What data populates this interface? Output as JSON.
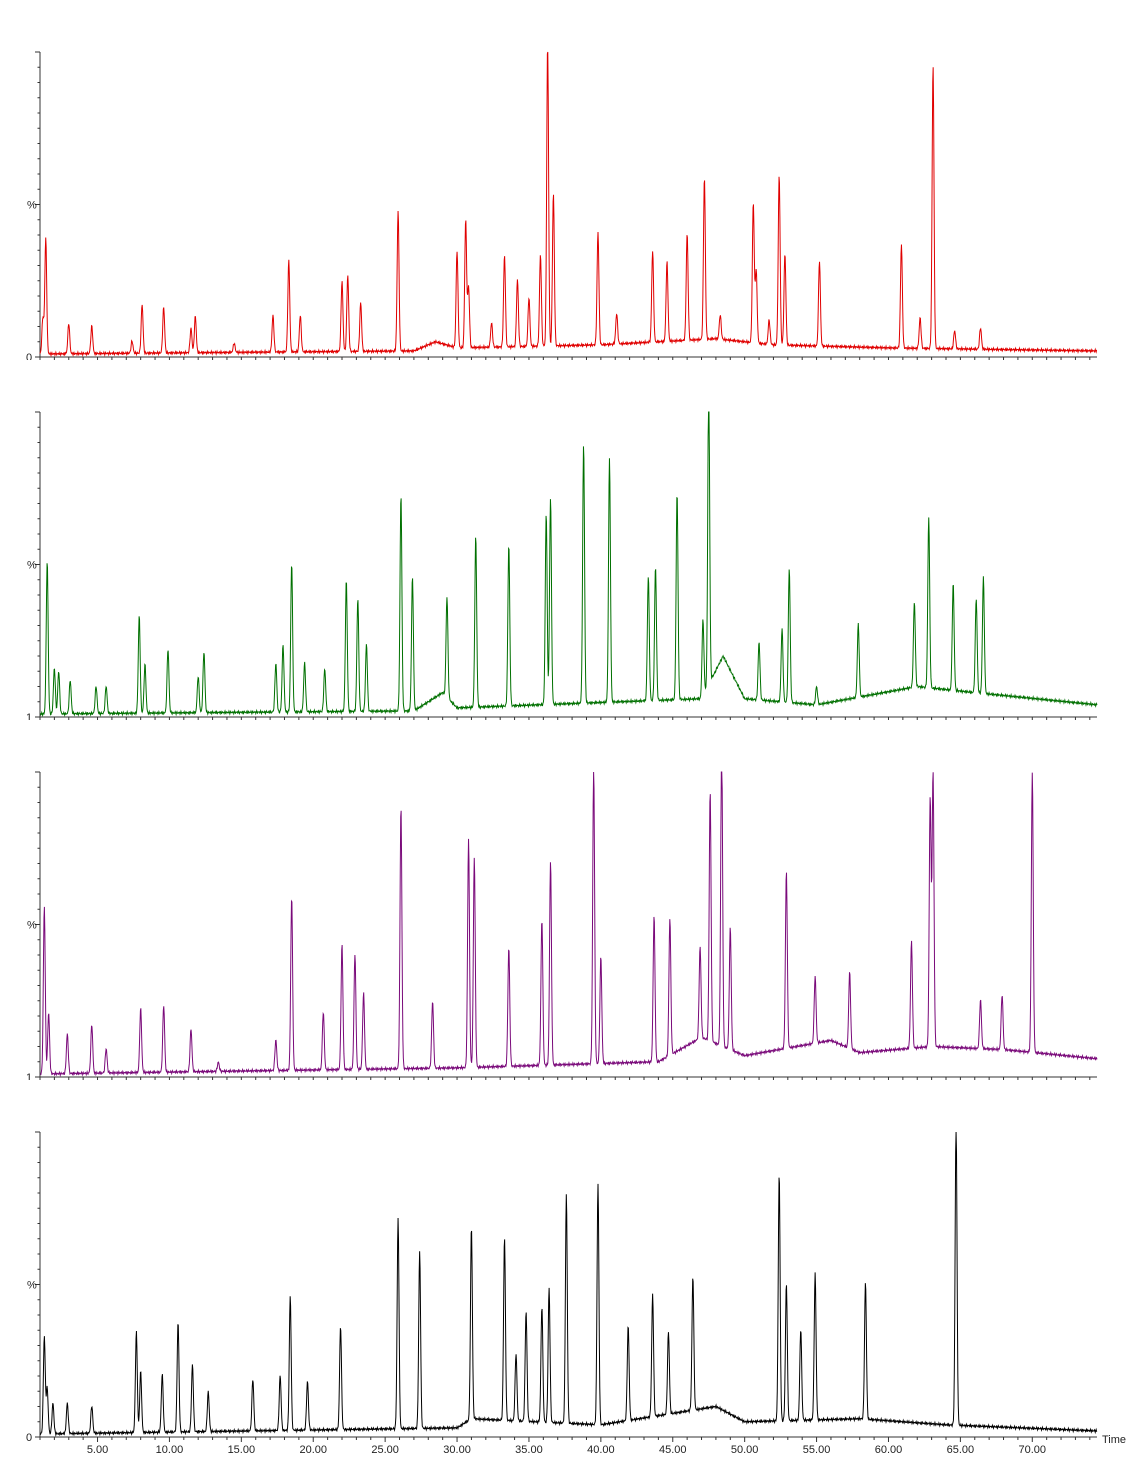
{
  "chart_data": [
    {
      "type": "line",
      "color": "#e00000",
      "x_ticks": [
        "5.00",
        "10.00",
        "15.00",
        "20.00",
        "25.00",
        "30.00",
        "35.00",
        "40.00",
        "45.00",
        "50.00",
        "55.00",
        "60.00",
        "65.00",
        "70.00"
      ],
      "y_top_label": "%",
      "y_bottom_label": "0",
      "xlim": [
        1,
        74.5
      ],
      "ylim": [
        0,
        100
      ],
      "baseline": [
        [
          1,
          1
        ],
        [
          27,
          2
        ],
        [
          28.5,
          5
        ],
        [
          30,
          3
        ],
        [
          40,
          4
        ],
        [
          48,
          6
        ],
        [
          52,
          4
        ],
        [
          60,
          3
        ],
        [
          74.5,
          2
        ]
      ],
      "peaks": [
        [
          1.4,
          38
        ],
        [
          1.2,
          12
        ],
        [
          3,
          10
        ],
        [
          4.6,
          9
        ],
        [
          7.4,
          4
        ],
        [
          8.1,
          16
        ],
        [
          9.6,
          15
        ],
        [
          11.5,
          8
        ],
        [
          11.8,
          12
        ],
        [
          14.5,
          3
        ],
        [
          17.2,
          12
        ],
        [
          18.3,
          30
        ],
        [
          19.1,
          12
        ],
        [
          22,
          23
        ],
        [
          22.4,
          25
        ],
        [
          23.3,
          16
        ],
        [
          25.9,
          46
        ],
        [
          30,
          32
        ],
        [
          30.6,
          42
        ],
        [
          30.8,
          20
        ],
        [
          32.4,
          8
        ],
        [
          33.3,
          30
        ],
        [
          34.2,
          22
        ],
        [
          35,
          16
        ],
        [
          35.8,
          30
        ],
        [
          36.3,
          100
        ],
        [
          36.7,
          50
        ],
        [
          39.8,
          37
        ],
        [
          41.1,
          10
        ],
        [
          43.6,
          30
        ],
        [
          44.6,
          26
        ],
        [
          46,
          35
        ],
        [
          47.2,
          53
        ],
        [
          48.3,
          8
        ],
        [
          50.6,
          46
        ],
        [
          50.8,
          24
        ],
        [
          51.7,
          8
        ],
        [
          52.4,
          56
        ],
        [
          52.8,
          30
        ],
        [
          55.2,
          28
        ],
        [
          60.9,
          34
        ],
        [
          62.2,
          10
        ],
        [
          63.1,
          93
        ],
        [
          64.6,
          6
        ],
        [
          66.4,
          7
        ]
      ]
    },
    {
      "type": "line",
      "color": "#007000",
      "x_ticks": [
        "5.00",
        "10.00",
        "15.00",
        "20.00",
        "25.00",
        "30.00",
        "35.00",
        "40.00",
        "45.00",
        "50.00",
        "55.00",
        "60.00",
        "65.00",
        "70.00"
      ],
      "y_top_label": "%",
      "y_bottom_label": "1",
      "xlim": [
        1,
        74.5
      ],
      "ylim": [
        0,
        100
      ],
      "baseline": [
        [
          1,
          1
        ],
        [
          27,
          2
        ],
        [
          29,
          8
        ],
        [
          30,
          3
        ],
        [
          47,
          6
        ],
        [
          48.5,
          20
        ],
        [
          50,
          6
        ],
        [
          55,
          4
        ],
        [
          62,
          10
        ],
        [
          66,
          8
        ],
        [
          74.5,
          4
        ]
      ],
      "peaks": [
        [
          1.5,
          50
        ],
        [
          2,
          15
        ],
        [
          2.3,
          14
        ],
        [
          3.1,
          11
        ],
        [
          4.9,
          9
        ],
        [
          5.6,
          9
        ],
        [
          7.9,
          32
        ],
        [
          8.3,
          16
        ],
        [
          9.9,
          21
        ],
        [
          12,
          12
        ],
        [
          12.4,
          20
        ],
        [
          17.4,
          16
        ],
        [
          17.9,
          22
        ],
        [
          18.5,
          49
        ],
        [
          19.4,
          16
        ],
        [
          20.8,
          14
        ],
        [
          22.3,
          43
        ],
        [
          23.1,
          37
        ],
        [
          23.7,
          22
        ],
        [
          26.1,
          71
        ],
        [
          26.9,
          44
        ],
        [
          29.3,
          33
        ],
        [
          31.3,
          56
        ],
        [
          33.6,
          53
        ],
        [
          36.2,
          63
        ],
        [
          36.5,
          68
        ],
        [
          38.8,
          85
        ],
        [
          40.6,
          80
        ],
        [
          43.3,
          41
        ],
        [
          43.8,
          44
        ],
        [
          45.3,
          68
        ],
        [
          47.5,
          100
        ],
        [
          47.1,
          25
        ],
        [
          51,
          19
        ],
        [
          52.6,
          24
        ],
        [
          53.1,
          44
        ],
        [
          55,
          6
        ],
        [
          57.9,
          24
        ],
        [
          61.8,
          28
        ],
        [
          62.8,
          56
        ],
        [
          64.5,
          35
        ],
        [
          66.1,
          31
        ],
        [
          66.6,
          38
        ]
      ]
    },
    {
      "type": "line",
      "color": "#7a0a7a",
      "x_ticks": [
        "5.00",
        "10.00",
        "15.00",
        "20.00",
        "25.00",
        "30.00",
        "35.00",
        "40.00",
        "45.00",
        "50.00",
        "55.00",
        "60.00",
        "65.00",
        "70.00"
      ],
      "y_top_label": "%",
      "y_bottom_label": "1",
      "xlim": [
        1,
        74.5
      ],
      "ylim": [
        0,
        100
      ],
      "baseline": [
        [
          1,
          1
        ],
        [
          30,
          3
        ],
        [
          44,
          5
        ],
        [
          47,
          13
        ],
        [
          50,
          7
        ],
        [
          56,
          12
        ],
        [
          58,
          8
        ],
        [
          63,
          10
        ],
        [
          68,
          9
        ],
        [
          74.5,
          6
        ]
      ],
      "peaks": [
        [
          1.3,
          55
        ],
        [
          1.6,
          20
        ],
        [
          2.9,
          13
        ],
        [
          4.6,
          16
        ],
        [
          5.6,
          8
        ],
        [
          8,
          21
        ],
        [
          9.6,
          22
        ],
        [
          11.5,
          14
        ],
        [
          13.4,
          3
        ],
        [
          17.4,
          10
        ],
        [
          18.5,
          57
        ],
        [
          20.7,
          19
        ],
        [
          22,
          41
        ],
        [
          22.9,
          38
        ],
        [
          23.5,
          25
        ],
        [
          26.1,
          86
        ],
        [
          28.3,
          22
        ],
        [
          30.8,
          75
        ],
        [
          31.2,
          69
        ],
        [
          33.6,
          39
        ],
        [
          35.9,
          48
        ],
        [
          36.5,
          67
        ],
        [
          39.5,
          98
        ],
        [
          40,
          35
        ],
        [
          43.7,
          48
        ],
        [
          44.8,
          45
        ],
        [
          46.9,
          30
        ],
        [
          47.6,
          82
        ],
        [
          48.4,
          100
        ],
        [
          49,
          40
        ],
        [
          52.9,
          58
        ],
        [
          54.9,
          22
        ],
        [
          57.3,
          25
        ],
        [
          61.6,
          35
        ],
        [
          62.9,
          82
        ],
        [
          63.1,
          90
        ],
        [
          66.4,
          16
        ],
        [
          67.9,
          18
        ],
        [
          70,
          92
        ]
      ]
    },
    {
      "type": "line",
      "color": "#000000",
      "x_ticks": [
        "5.00",
        "10.00",
        "15.00",
        "20.00",
        "25.00",
        "30.00",
        "35.00",
        "40.00",
        "45.00",
        "50.00",
        "55.00",
        "60.00",
        "65.00",
        "70.00"
      ],
      "x_label": "Time",
      "y_top_label": "%",
      "y_bottom_label": "0",
      "xlim": [
        1,
        74.5
      ],
      "ylim": [
        0,
        100
      ],
      "baseline": [
        [
          1,
          1
        ],
        [
          30,
          3
        ],
        [
          31,
          6
        ],
        [
          40,
          4
        ],
        [
          48,
          10
        ],
        [
          50,
          5
        ],
        [
          58,
          6
        ],
        [
          64,
          4
        ],
        [
          74.5,
          2
        ]
      ],
      "peaks": [
        [
          1.3,
          32
        ],
        [
          1.5,
          15
        ],
        [
          1.9,
          10
        ],
        [
          2.9,
          10
        ],
        [
          4.6,
          9
        ],
        [
          7.7,
          33
        ],
        [
          8,
          20
        ],
        [
          9.5,
          19
        ],
        [
          10.6,
          36
        ],
        [
          11.6,
          22
        ],
        [
          12.7,
          13
        ],
        [
          15.8,
          17
        ],
        [
          17.7,
          18
        ],
        [
          18.4,
          44
        ],
        [
          19.6,
          16
        ],
        [
          21.9,
          34
        ],
        [
          25.9,
          69
        ],
        [
          27.4,
          58
        ],
        [
          31,
          63
        ],
        [
          33.3,
          60
        ],
        [
          34.1,
          22
        ],
        [
          34.8,
          36
        ],
        [
          35.9,
          38
        ],
        [
          36.4,
          44
        ],
        [
          37.6,
          75
        ],
        [
          39.8,
          79
        ],
        [
          41.9,
          31
        ],
        [
          43.6,
          40
        ],
        [
          44.7,
          27
        ],
        [
          46.4,
          44
        ],
        [
          52.4,
          81
        ],
        [
          52.9,
          45
        ],
        [
          53.9,
          30
        ],
        [
          54.9,
          48
        ],
        [
          58.4,
          45
        ],
        [
          64.7,
          100
        ]
      ]
    }
  ]
}
